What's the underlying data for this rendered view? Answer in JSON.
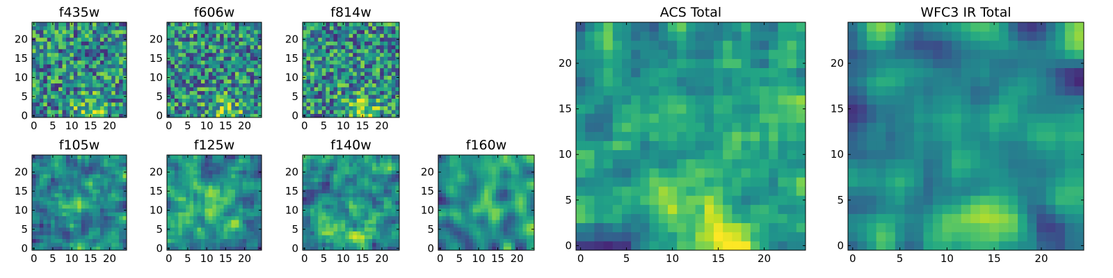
{
  "chart_data": [
    {
      "type": "heatmap",
      "title": "f435w",
      "xlim": [
        0,
        24
      ],
      "ylim": [
        0,
        24
      ],
      "xticks": [
        "0",
        "5",
        "10",
        "15",
        "20"
      ],
      "yticks": [
        "0",
        "5",
        "10",
        "15",
        "20"
      ],
      "colormap": "viridis",
      "seed": 11,
      "smooth": 0,
      "bright_spot": [
        15,
        1
      ],
      "bright_strength": 0.3
    },
    {
      "type": "heatmap",
      "title": "f606w",
      "xlim": [
        0,
        24
      ],
      "ylim": [
        0,
        24
      ],
      "xticks": [
        "0",
        "5",
        "10",
        "15",
        "20"
      ],
      "yticks": [
        "0",
        "5",
        "10",
        "15",
        "20"
      ],
      "colormap": "viridis",
      "seed": 23,
      "smooth": 0,
      "bright_spot": [
        15,
        0
      ],
      "bright_strength": 0.35
    },
    {
      "type": "heatmap",
      "title": "f814w",
      "xlim": [
        0,
        24
      ],
      "ylim": [
        0,
        24
      ],
      "xticks": [
        "0",
        "5",
        "10",
        "15",
        "20"
      ],
      "yticks": [
        "0",
        "5",
        "10",
        "15",
        "20"
      ],
      "colormap": "viridis",
      "seed": 37,
      "smooth": 0,
      "bright_spot": [
        15,
        1
      ],
      "bright_strength": 0.4
    },
    {
      "type": "heatmap",
      "title": "f105w",
      "xlim": [
        0,
        24
      ],
      "ylim": [
        0,
        24
      ],
      "xticks": [
        "0",
        "5",
        "10",
        "15",
        "20"
      ],
      "yticks": [
        "0",
        "5",
        "10",
        "15",
        "20"
      ],
      "colormap": "viridis",
      "seed": 41,
      "smooth": 1,
      "bright_spot": [
        12,
        12
      ],
      "bright_strength": 0.25
    },
    {
      "type": "heatmap",
      "title": "f125w",
      "xlim": [
        0,
        24
      ],
      "ylim": [
        0,
        24
      ],
      "xticks": [
        "0",
        "5",
        "10",
        "15",
        "20"
      ],
      "yticks": [
        "0",
        "5",
        "10",
        "15",
        "20"
      ],
      "colormap": "viridis",
      "seed": 53,
      "smooth": 1,
      "bright_spot": [
        12,
        11
      ],
      "bright_strength": 0.25
    },
    {
      "type": "heatmap",
      "title": "f140w",
      "xlim": [
        0,
        24
      ],
      "ylim": [
        0,
        24
      ],
      "xticks": [
        "0",
        "5",
        "10",
        "15",
        "20"
      ],
      "yticks": [
        "0",
        "5",
        "10",
        "15",
        "20"
      ],
      "colormap": "viridis",
      "seed": 67,
      "smooth": 1,
      "bright_spot": [
        12,
        2
      ],
      "bright_strength": 0.3
    },
    {
      "type": "heatmap",
      "title": "f160w",
      "xlim": [
        0,
        24
      ],
      "ylim": [
        0,
        24
      ],
      "xticks": [
        "0",
        "5",
        "10",
        "15",
        "20"
      ],
      "yticks": [
        "0",
        "5",
        "10",
        "15",
        "20"
      ],
      "colormap": "viridis",
      "seed": 79,
      "smooth": 2,
      "bright_spot": [
        12,
        12
      ],
      "bright_strength": 0.25
    },
    {
      "type": "heatmap",
      "title": "ACS Total",
      "xlim": [
        0,
        24
      ],
      "ylim": [
        0,
        24
      ],
      "xticks": [
        "0",
        "5",
        "10",
        "15",
        "20"
      ],
      "yticks": [
        "0",
        "5",
        "10",
        "15",
        "20"
      ],
      "colormap": "viridis",
      "seed": 97,
      "smooth": 1,
      "bright_spot": [
        15,
        1
      ],
      "bright_strength": 0.45
    },
    {
      "type": "heatmap",
      "title": "WFC3 IR Total",
      "xlim": [
        0,
        24
      ],
      "ylim": [
        0,
        24
      ],
      "xticks": [
        "0",
        "5",
        "10",
        "15",
        "20"
      ],
      "yticks": [
        "0",
        "5",
        "10",
        "15",
        "20"
      ],
      "colormap": "viridis",
      "seed": 113,
      "smooth": 2,
      "bright_spot": [
        13,
        2
      ],
      "bright_strength": 0.4
    }
  ]
}
